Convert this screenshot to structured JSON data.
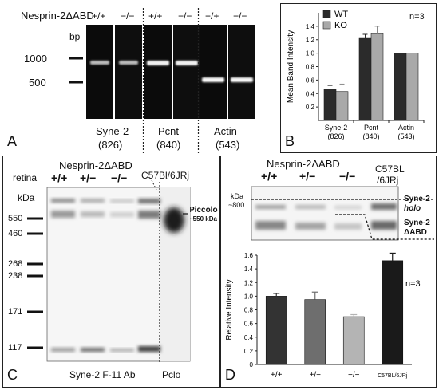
{
  "panels": {
    "A": {
      "letter": "A",
      "construct": "Nesprin-2ΔABD",
      "genotypes": [
        "+/+",
        "−/−",
        "+/+",
        "−/−",
        "+/+",
        "−/−"
      ],
      "size_unit": "bp",
      "markers": [
        "1000",
        "500"
      ],
      "genes": [
        {
          "name": "Syne-2",
          "size": "(826)"
        },
        {
          "name": "Pcnt",
          "size": "(840)"
        },
        {
          "name": "Actin",
          "size": "(543)"
        }
      ]
    },
    "B": {
      "letter": "B",
      "n_label": "n=3"
    },
    "C": {
      "letter": "C",
      "row_label": "retina",
      "construct": "Nesprin-2ΔABD",
      "genotypes": [
        "+/+",
        "+/−",
        "−/−"
      ],
      "strain": "C57Bl/6JRj",
      "size_unit": "kDa",
      "markers": [
        "550",
        "460",
        "268",
        "238",
        "171",
        "117"
      ],
      "piccolo_label": "Piccolo",
      "piccolo_size": "~550 kDa",
      "antibody": "Syne-2 F-11 Ab",
      "pclo": "Pclo"
    },
    "D": {
      "letter": "D",
      "construct": "Nesprin-2ΔABD",
      "genotypes": [
        "+/+",
        "+/−",
        "−/−"
      ],
      "strain_line1": "C57BL",
      "strain_line2": "/6JRj",
      "kda_label": "kDa",
      "kda_value": "~800",
      "holo_line1": "Syne-2",
      "holo_line2": "holo",
      "abd_line1": "Syne-2",
      "abd_line2": "ΔABD",
      "n_label": "n=3"
    }
  },
  "chart_data": [
    {
      "type": "bar",
      "panel": "B",
      "categories": [
        "Syne-2\n(826)",
        "Pcnt\n(840)",
        "Actin\n(543)"
      ],
      "category_lines": [
        [
          "Syne-2",
          "(826)"
        ],
        [
          "Pcnt",
          "(840)"
        ],
        [
          "Actin",
          "(543)"
        ]
      ],
      "series": [
        {
          "name": "WT",
          "values": [
            0.47,
            1.22,
            1.0
          ],
          "errors": [
            0.05,
            0.06,
            0.0
          ],
          "color": "#2b2b2b"
        },
        {
          "name": "KO",
          "values": [
            0.43,
            1.29,
            1.0
          ],
          "errors": [
            0.11,
            0.11,
            0.0
          ],
          "color": "#a9a9a9"
        }
      ],
      "ylabel": "Mean Band Intensity",
      "ylim": [
        0,
        1.6
      ],
      "yticks": [
        "0.2",
        "0.4",
        "0.6",
        "0.8",
        "1.0",
        "1.2",
        "1.4"
      ],
      "ytick_values": [
        0.2,
        0.4,
        0.6,
        0.8,
        1.0,
        1.2,
        1.4
      ],
      "legend_position": "top-left"
    },
    {
      "type": "bar",
      "panel": "D",
      "categories": [
        "+/+",
        "+/−",
        "−/−",
        "C57BL/6JRj"
      ],
      "values": [
        1.0,
        0.95,
        0.7,
        1.52
      ],
      "errors": [
        0.04,
        0.11,
        0.03,
        0.11
      ],
      "colors": [
        "#333333",
        "#6e6e6e",
        "#b4b4b4",
        "#1a1a1a"
      ],
      "ylabel": "Relative Intensity",
      "ylim": [
        0,
        1.6
      ],
      "yticks": [
        "0",
        "0.2",
        "0.4",
        "0.6",
        "0.8",
        "1.0",
        "1.2",
        "1.4",
        "1.6"
      ],
      "ytick_values": [
        0,
        0.2,
        0.4,
        0.6,
        0.8,
        1.0,
        1.2,
        1.4,
        1.6
      ]
    }
  ]
}
